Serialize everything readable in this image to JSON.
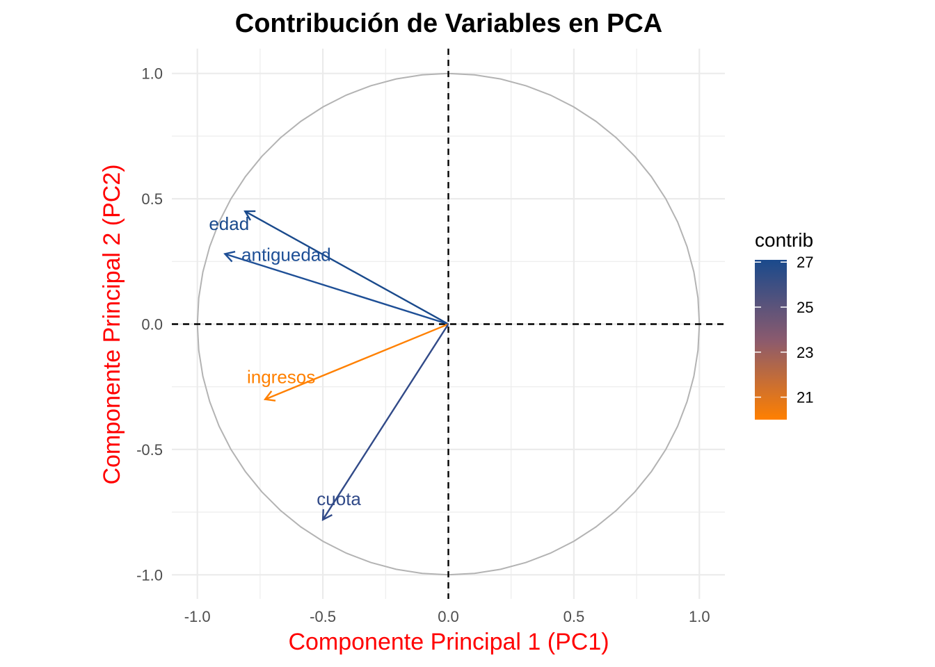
{
  "chart_data": {
    "type": "scatter",
    "title": "Contribución de Variables en PCA",
    "xlabel": "Componente Principal 1 (PC1)",
    "ylabel": "Componente Principal 2 (PC2)",
    "xlim": [
      -1.1,
      1.1
    ],
    "ylim": [
      -1.1,
      1.1
    ],
    "x_ticks": [
      "-1.0",
      "-0.5",
      "0.0",
      "0.5",
      "1.0"
    ],
    "x_tick_values": [
      -1.0,
      -0.5,
      0.0,
      0.5,
      1.0
    ],
    "y_ticks": [
      "1.0",
      "0.5",
      "0.0",
      "-0.5",
      "-1.0"
    ],
    "y_tick_values": [
      1.0,
      0.5,
      0.0,
      -0.5,
      -1.0
    ],
    "grid": true,
    "unit_circle": true,
    "reference_lines": [
      0,
      0
    ],
    "variables": [
      {
        "name": "edad",
        "x": -0.81,
        "y": 0.45,
        "contrib": 27.1,
        "color": "#1a4a8c"
      },
      {
        "name": "antiguedad",
        "x": -0.89,
        "y": 0.28,
        "contrib": 26.9,
        "color": "#1e4f96"
      },
      {
        "name": "ingresos",
        "x": -0.73,
        "y": -0.3,
        "contrib": 20.0,
        "color": "#ff8000"
      },
      {
        "name": "cuota",
        "x": -0.5,
        "y": -0.78,
        "contrib": 25.8,
        "color": "#314a88"
      }
    ],
    "legend": {
      "title": "contrib",
      "position": "right",
      "ticks": [
        "27",
        "25",
        "23",
        "21"
      ],
      "tick_values": [
        27,
        25,
        23,
        21
      ],
      "range": [
        20.0,
        27.1
      ],
      "low_color": "#ff8000",
      "mid_color": "#8a5a6e",
      "high_color": "#1a4a8c"
    }
  }
}
